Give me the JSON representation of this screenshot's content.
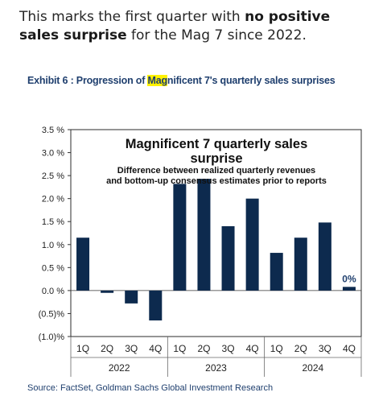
{
  "headline": {
    "pre": "This marks the first quarter with ",
    "bold": "no positive sales surprise",
    "post": " for the Mag 7 since 2022."
  },
  "exhibit": {
    "pre": "Exhibit 6 : Progression of ",
    "highlight": "Mag",
    "post": "nificent 7's quarterly sales surprises"
  },
  "source": "Source: FactSet, Goldman Sachs Global Investment Research",
  "colors": {
    "bar": "#0d2a4e",
    "frame": "#2b2b2b",
    "accent": "#fff200"
  },
  "chart_data": {
    "type": "bar",
    "title": "Magnificent 7 quarterly sales surprise",
    "subtitle_line1": "Difference between realized quarterly revenues",
    "subtitle_line2": "and bottom-up  consensus  estimates prior to reports",
    "ylim": [
      -1.0,
      3.5
    ],
    "yticks": [
      3.5,
      3.0,
      2.5,
      2.0,
      1.5,
      1.0,
      0.5,
      0.0,
      -0.5,
      -1.0
    ],
    "ytick_labels": [
      "3.5 %",
      "3.0 %",
      "2.5 %",
      "2.0 %",
      "1.5 %",
      "1.0 %",
      "0.5 %",
      "0.0 %",
      "(0.5)%",
      "(1.0)%"
    ],
    "categories": [
      "1Q",
      "2Q",
      "3Q",
      "4Q",
      "1Q",
      "2Q",
      "3Q",
      "4Q",
      "1Q",
      "2Q",
      "3Q",
      "4Q"
    ],
    "groups": [
      {
        "label": "2022",
        "span": 4
      },
      {
        "label": "2023",
        "span": 4
      },
      {
        "label": "2024",
        "span": 4
      }
    ],
    "values": [
      1.15,
      -0.05,
      -0.28,
      -0.65,
      2.32,
      2.43,
      1.4,
      2.0,
      0.82,
      1.15,
      1.48,
      0.08
    ],
    "annotations": [
      {
        "index": 11,
        "text": "0%"
      }
    ]
  }
}
